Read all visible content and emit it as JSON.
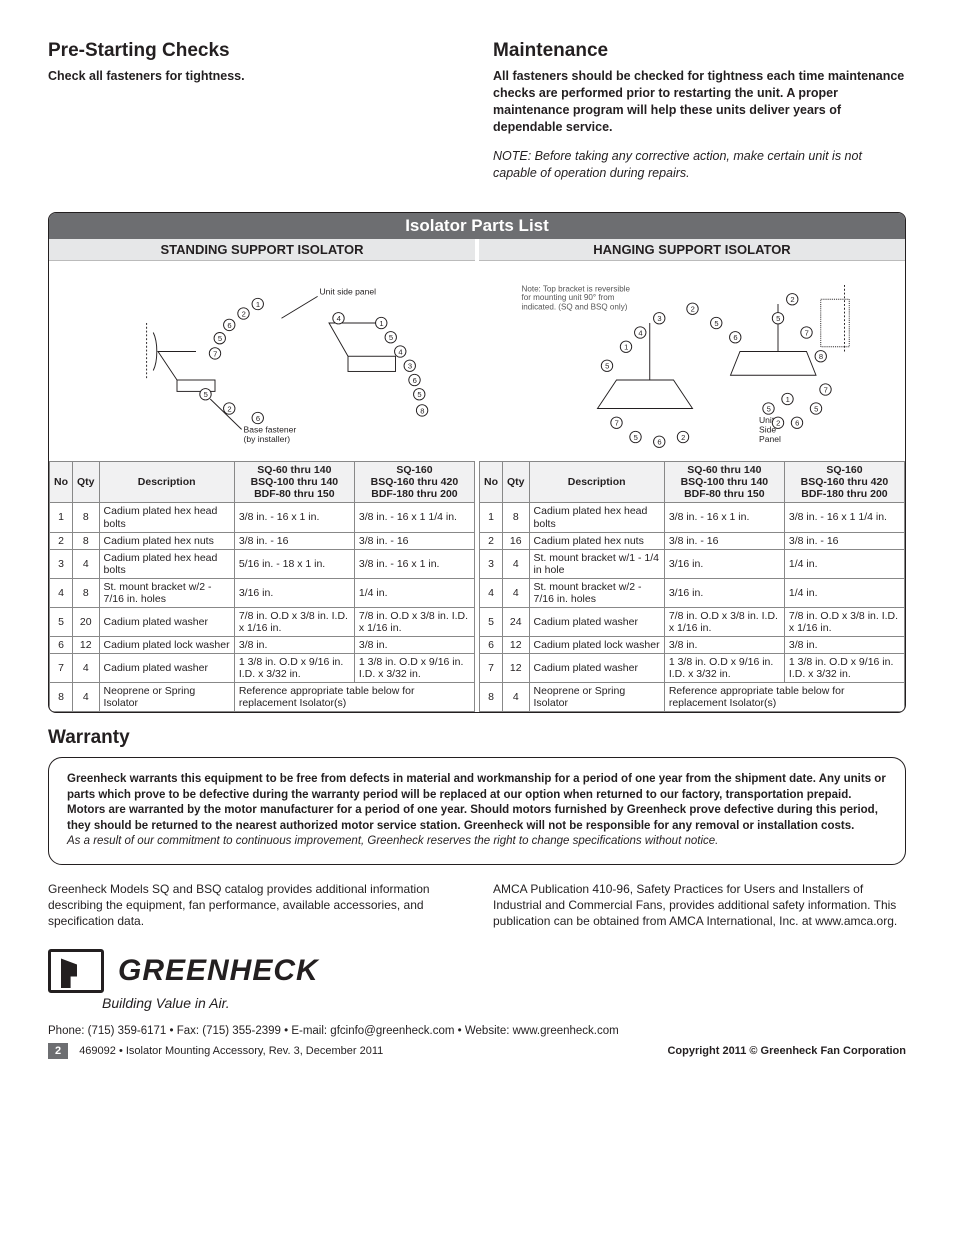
{
  "sections": {
    "prestart": {
      "heading": "Pre-Starting Checks",
      "text": "Check all fasteners for tightness."
    },
    "maintenance": {
      "heading": "Maintenance",
      "text": "All fasteners should be checked for tightness each time maintenance checks are performed prior to restarting the unit. A proper maintenance program will help these units deliver years of dependable service.",
      "note": "NOTE: Before taking any corrective action, make certain unit is not capable of operation during repairs."
    }
  },
  "isolator": {
    "title": "Isolator Parts List",
    "standing": {
      "header": "STANDING SUPPORT ISOLATOR",
      "diagram_labels": {
        "unit_side_panel": "Unit side panel",
        "base_fastener": "Base fastener\n(by installer)"
      }
    },
    "hanging": {
      "header": "HANGING SUPPORT ISOLATOR",
      "diagram_labels": {
        "note": "Note: Top bracket is reversible for mounting unit 90° from indicated. (SQ and BSQ only)",
        "unit_side_panel": "Unit\nSide\nPanel"
      }
    },
    "columns": {
      "no": "No",
      "qty": "Qty",
      "desc": "Description",
      "spec_a": "SQ-60 thru 140\nBSQ-100 thru 140\nBDF-80 thru 150",
      "spec_b": "SQ-160\nBSQ-160 thru 420\nBDF-180 thru 200"
    },
    "standing_rows": [
      {
        "no": "1",
        "qty": "8",
        "desc": "Cadium plated hex head bolts",
        "a": "3/8 in. - 16 x 1 in.",
        "b": "3/8 in. - 16 x 1 1/4 in."
      },
      {
        "no": "2",
        "qty": "8",
        "desc": "Cadium plated hex nuts",
        "a": "3/8 in. - 16",
        "b": "3/8 in. - 16"
      },
      {
        "no": "3",
        "qty": "4",
        "desc": "Cadium plated hex head bolts",
        "a": "5/16 in. - 18 x 1 in.",
        "b": "3/8 in. - 16 x 1 in."
      },
      {
        "no": "4",
        "qty": "8",
        "desc": "St. mount bracket w/2 - 7/16 in. holes",
        "a": "3/16 in.",
        "b": "1/4 in."
      },
      {
        "no": "5",
        "qty": "20",
        "desc": "Cadium plated washer",
        "a": "7/8 in. O.D x 3/8 in. I.D. x 1/16 in.",
        "b": "7/8 in. O.D x 3/8 in. I.D. x 1/16 in."
      },
      {
        "no": "6",
        "qty": "12",
        "desc": "Cadium plated lock washer",
        "a": "3/8 in.",
        "b": "3/8 in."
      },
      {
        "no": "7",
        "qty": "4",
        "desc": "Cadium plated washer",
        "a": "1 3/8 in. O.D x 9/16 in. I.D. x 3/32 in.",
        "b": "1 3/8 in. O.D x 9/16 in. I.D. x 3/32 in."
      },
      {
        "no": "8",
        "qty": "4",
        "desc": "Neoprene or Spring Isolator",
        "a": "Reference appropriate table below for replacement Isolator(s)",
        "b": ""
      }
    ],
    "hanging_rows": [
      {
        "no": "1",
        "qty": "8",
        "desc": "Cadium plated hex head bolts",
        "a": "3/8 in. - 16 x 1 in.",
        "b": "3/8 in. - 16 x 1 1/4 in."
      },
      {
        "no": "2",
        "qty": "16",
        "desc": "Cadium plated hex nuts",
        "a": "3/8 in. - 16",
        "b": "3/8 in. - 16"
      },
      {
        "no": "3",
        "qty": "4",
        "desc": "St. mount bracket w/1 - 1/4 in hole",
        "a": "3/16 in.",
        "b": "1/4 in."
      },
      {
        "no": "4",
        "qty": "4",
        "desc": "St. mount bracket w/2 - 7/16 in. holes",
        "a": "3/16 in.",
        "b": "1/4 in."
      },
      {
        "no": "5",
        "qty": "24",
        "desc": "Cadium plated washer",
        "a": "7/8 in. O.D x 3/8 in. I.D. x 1/16 in.",
        "b": "7/8 in. O.D x 3/8 in. I.D. x 1/16 in."
      },
      {
        "no": "6",
        "qty": "12",
        "desc": "Cadium plated lock washer",
        "a": "3/8 in.",
        "b": "3/8 in."
      },
      {
        "no": "7",
        "qty": "12",
        "desc": "Cadium plated washer",
        "a": "1 3/8 in. O.D x 9/16 in. I.D. x 3/32 in.",
        "b": "1 3/8 in. O.D x 9/16 in. I.D. x 3/32 in."
      },
      {
        "no": "8",
        "qty": "4",
        "desc": "Neoprene or Spring Isolator",
        "a": "Reference appropriate table below for replacement Isolator(s)",
        "b": ""
      }
    ]
  },
  "warranty": {
    "heading": "Warranty",
    "body": "Greenheck warrants this equipment to be free from defects in material and workmanship for a period of one year from the shipment date. Any units or parts which prove to be defective during the warranty period will be replaced at our option when returned to our factory, transportation prepaid. Motors are warranted by the motor manufacturer for a period of one year. Should motors furnished by Greenheck prove defective during this period, they should be returned to the nearest authorized motor service station. Greenheck will not be responsible for any removal or installation costs.",
    "disclaimer": "As a result of our commitment to continuous improvement, Greenheck reserves the right to change specifications without notice."
  },
  "bottom": {
    "left": "Greenheck Models SQ and BSQ catalog provides additional information describing the equipment, fan performance, available accessories, and specification data.",
    "right": "AMCA Publication 410-96, Safety Practices for Users and Installers of Industrial and Commercial Fans, provides additional safety information. This publication can be obtained from AMCA International, Inc. at www.amca.org."
  },
  "brand": {
    "name": "GREENHECK",
    "tag": "Building Value in Air.",
    "contact": "Phone: (715) 359-6171 • Fax: (715) 355-2399 • E-mail: gfcinfo@greenheck.com • Website: www.greenheck.com"
  },
  "footer": {
    "page": "2",
    "doc": "469092 • Isolator Mounting Accessory, Rev. 3, December 2011",
    "copyright": "Copyright 2011 © Greenheck Fan Corporation"
  },
  "style": {
    "header_bg": "#6d6e71",
    "header_fg": "#ffffff",
    "subheader_bg": "#e6e7e8",
    "border_color": "#231f20",
    "table_border": "#888888",
    "th_bg": "#f1f1f2",
    "body_font_size_pt": 9,
    "heading_font_size_pt": 14
  }
}
